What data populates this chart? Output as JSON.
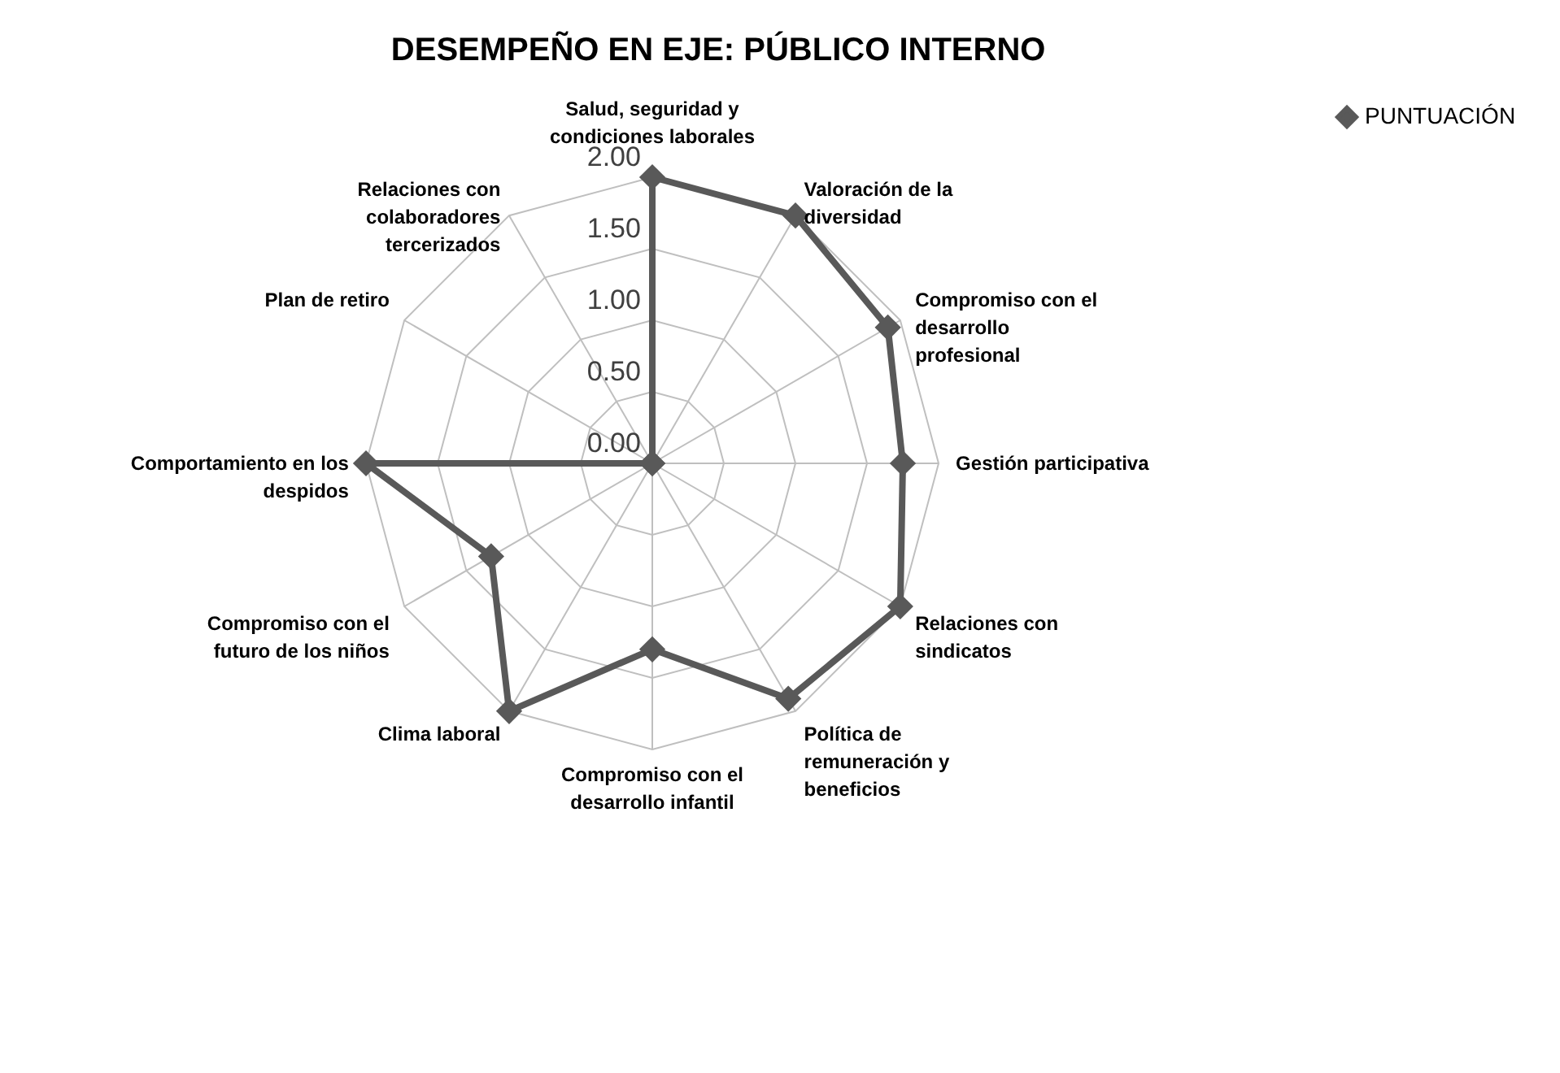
{
  "chart_data": {
    "type": "radar",
    "title": "DESEMPEÑO EN EJE: PÚBLICO INTERNO",
    "categories": [
      "Salud, seguridad y condiciones laborales",
      "Valoración de la diversidad",
      "Compromiso con el desarrollo profesional",
      "Gestión participativa",
      "Relaciones con sindicatos",
      "Política de remuneración y beneficios",
      "Compromiso con el desarrollo infantil",
      "Clima laboral",
      "Compromiso con el futuro de los niños",
      "Comportamiento en los despidos",
      "Plan de retiro",
      "Relaciones con colaboradores tercerizados"
    ],
    "series": [
      {
        "name": "PUNTUACIÓN",
        "color": "#595959",
        "values": [
          2.0,
          2.0,
          1.9,
          1.75,
          2.0,
          1.9,
          1.3,
          2.0,
          1.3,
          2.0,
          0,
          0
        ]
      }
    ],
    "ylim": [
      0,
      2
    ],
    "yticks": [
      {
        "value": 0,
        "label": "0.00"
      },
      {
        "value": 0.5,
        "label": "0.50"
      },
      {
        "value": 1,
        "label": "1.00"
      },
      {
        "value": 1.5,
        "label": "1.50"
      },
      {
        "value": 2,
        "label": "2.00"
      }
    ],
    "grid": true,
    "legend": "right",
    "marker": "diamond",
    "line_style": "solid"
  }
}
